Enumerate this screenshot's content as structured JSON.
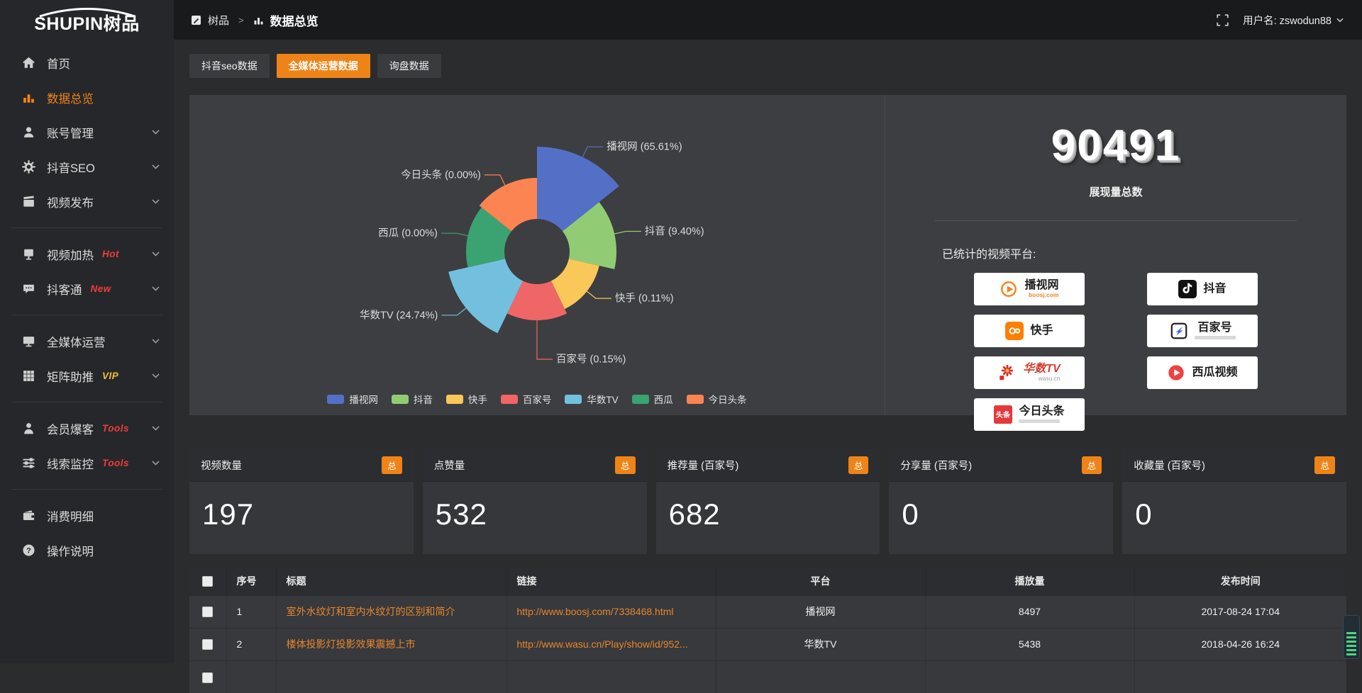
{
  "colors": {
    "accent_orange": "#ee8418",
    "link_orange": "#e8862d",
    "page_bg": "#2b2c2e",
    "panel_bg": "#3d3e41",
    "sidebar_bg": "#26272a",
    "topbar_bg": "#191a1c",
    "badge_red": "#f23c3c",
    "badge_vip_yellow": "#f3bf3a",
    "card_bg": "#35373a",
    "table_row_bg": "#37393c"
  },
  "logo": {
    "en": "SHUPIN",
    "cn": "树品"
  },
  "topbar": {
    "breadcrumb_root": "树品",
    "breadcrumb_separator": ">",
    "breadcrumb_current": "数据总览",
    "username": "用户名: zswodun88"
  },
  "sidebar": {
    "items": [
      {
        "label": "首页",
        "icon": "home-icon"
      },
      {
        "label": "数据总览",
        "icon": "bar-chart-icon",
        "active": true
      },
      {
        "label": "账号管理",
        "icon": "user-icon",
        "chevron": true
      },
      {
        "label": "抖音SEO",
        "icon": "gear-icon",
        "chevron": true
      },
      {
        "label": "视频发布",
        "icon": "clapperboard-icon",
        "chevron": true
      },
      {
        "label": "视频加热",
        "icon": "screen-icon",
        "badge": "Hot",
        "chevron": true
      },
      {
        "label": "抖客通",
        "icon": "chat-icon",
        "badge": "New",
        "chevron": true
      },
      {
        "label": "全媒体运营",
        "icon": "monitor-icon",
        "chevron": true
      },
      {
        "label": "矩阵助推",
        "icon": "grid-icon",
        "badge": "VIP",
        "chevron": true
      },
      {
        "label": "会员爆客",
        "icon": "person-icon",
        "badge": "Tools",
        "chevron": true
      },
      {
        "label": "线索监控",
        "icon": "sliders-icon",
        "badge": "Tools",
        "chevron": true
      },
      {
        "label": "消费明细",
        "icon": "wallet-icon"
      },
      {
        "label": "操作说明",
        "icon": "help-icon"
      }
    ]
  },
  "tabs": [
    {
      "label": "抖音seo数据",
      "active": false
    },
    {
      "label": "全媒体运营数据",
      "active": true
    },
    {
      "label": "询盘数据",
      "active": false
    }
  ],
  "chart_data": {
    "type": "pie",
    "variant": "nightingale-rose-area",
    "unit": "percent-of-total-impressions",
    "equal_angles": true,
    "start_angle_deg": -90,
    "hole_radius": 46,
    "hole_color": "#3d3e41",
    "legend_position": "bottom",
    "items": [
      {
        "name": "播视网",
        "pct": 65.61,
        "color": "#5470c6",
        "radius": 148
      },
      {
        "name": "抖音",
        "pct": 9.4,
        "color": "#91cc75",
        "radius": 112
      },
      {
        "name": "快手",
        "pct": 0.11,
        "color": "#fac858",
        "radius": 90
      },
      {
        "name": "百家号",
        "pct": 0.15,
        "color": "#ee6666",
        "radius": 97,
        "leader_len": 55
      },
      {
        "name": "华数TV",
        "pct": 24.74,
        "color": "#73c0de",
        "radius": 128
      },
      {
        "name": "西瓜",
        "pct": 0.0,
        "color": "#3ba272",
        "radius": 100
      },
      {
        "name": "今日头条",
        "pct": 0.0,
        "color": "#fc8452",
        "radius": 104
      }
    ]
  },
  "summary": {
    "total_value": "90491",
    "total_label": "展现量总数",
    "platforms_title": "已统计的视频平台:",
    "platform_badges": {
      "left": [
        {
          "name": "播视网",
          "main": "播视网",
          "sub": "boosj.com",
          "logo": "boosj-logo"
        },
        {
          "name": "快手",
          "main": "快手",
          "logo": "kuaishou-logo"
        },
        {
          "name": "华数TV",
          "main": "华数TV",
          "sub": "wasu.cn",
          "logo": "wasu-logo"
        },
        {
          "name": "今日头条",
          "main": "今日头条",
          "logo_text": "头条",
          "logo": "toutiao-logo"
        }
      ],
      "right": [
        {
          "name": "抖音",
          "main": "抖音",
          "logo": "douyin-logo"
        },
        {
          "name": "百家号",
          "main": "百家号",
          "logo": "baijiahao-logo"
        },
        {
          "name": "西瓜视频",
          "main": "西瓜视频",
          "logo": "xigua-logo"
        }
      ]
    }
  },
  "stat_cards": [
    {
      "title": "视频数量",
      "badge": "总",
      "value": "197"
    },
    {
      "title": "点赞量",
      "badge": "总",
      "value": "532"
    },
    {
      "title": "推荐量 (百家号)",
      "badge": "总",
      "value": "682"
    },
    {
      "title": "分享量 (百家号)",
      "badge": "总",
      "value": "0"
    },
    {
      "title": "收藏量 (百家号)",
      "badge": "总",
      "value": "0"
    }
  ],
  "table": {
    "headers": [
      "序号",
      "标题",
      "链接",
      "平台",
      "播放量",
      "发布时间"
    ],
    "rows": [
      {
        "no": "1",
        "title": "室外水纹灯和室内水纹灯的区别和简介",
        "link": "http://www.boosj.com/7338468.html",
        "platform": "播视网",
        "plays": "8497",
        "time": "2017-08-24 17:04"
      },
      {
        "no": "2",
        "title": "楼体投影灯投影效果震撼上市",
        "link": "http://www.wasu.cn/Play/show/id/952...",
        "platform": "华数TV",
        "plays": "5438",
        "time": "2018-04-26 16:24"
      }
    ]
  }
}
